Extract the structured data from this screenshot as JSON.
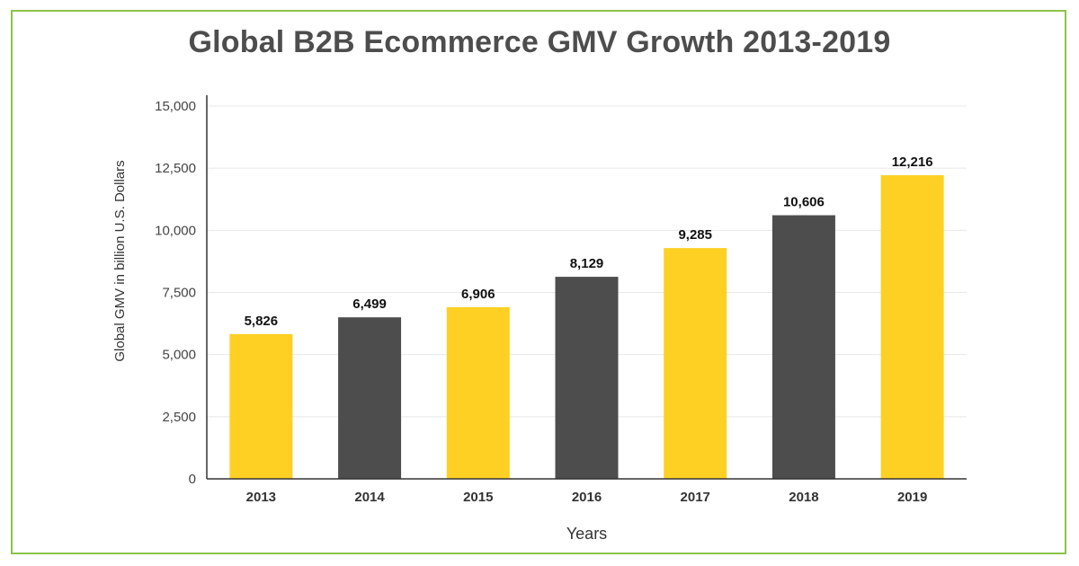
{
  "chart_data": {
    "type": "bar",
    "title": "Global B2B Ecommerce GMV Growth 2013-2019",
    "xlabel": "Years",
    "ylabel": "Global GMV in billion U.S. Dollars",
    "categories": [
      "2013",
      "2014",
      "2015",
      "2016",
      "2017",
      "2018",
      "2019"
    ],
    "values": [
      5826,
      6499,
      6906,
      8129,
      9285,
      10606,
      12216
    ],
    "value_labels": [
      "5,826",
      "6,499",
      "6,906",
      "8,129",
      "9,285",
      "10,606",
      "12,216"
    ],
    "ylim": [
      0,
      15000
    ],
    "yticks": [
      0,
      2500,
      5000,
      7500,
      10000,
      12500,
      15000
    ],
    "ytick_labels": [
      "0",
      "2,500",
      "5,000",
      "7,500",
      "10,000",
      "12,500",
      "15,000"
    ],
    "bar_colors": [
      "#fdd023",
      "#4d4d4d",
      "#fdd023",
      "#4d4d4d",
      "#fdd023",
      "#4d4d4d",
      "#fdd023"
    ],
    "grid": true,
    "legend": "none",
    "frame_color": "#8bc34a"
  }
}
